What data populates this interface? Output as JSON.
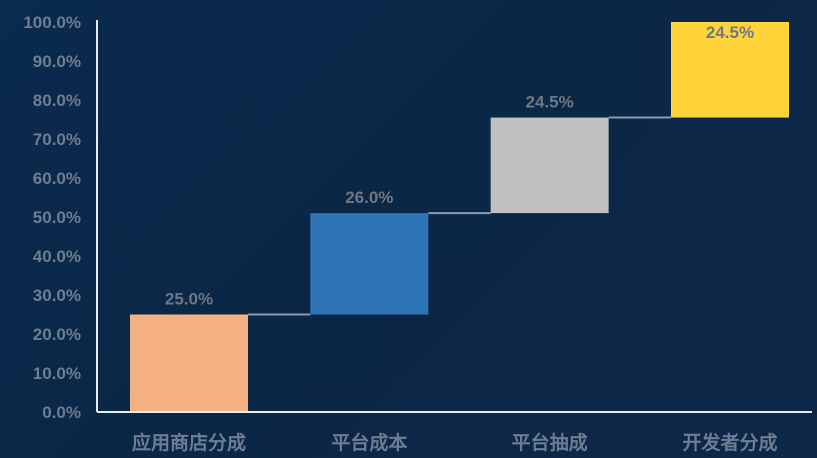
{
  "chart_data": {
    "type": "bar",
    "subtype": "waterfall",
    "categories": [
      "应用商店分成",
      "平台成本",
      "平台抽成",
      "开发者分成"
    ],
    "values": [
      25.0,
      26.0,
      24.5,
      24.5
    ],
    "data_labels": [
      "25.0%",
      "26.0%",
      "24.5%",
      "24.5%"
    ],
    "ylim": [
      0,
      100
    ],
    "yticks": [
      0,
      10,
      20,
      30,
      40,
      50,
      60,
      70,
      80,
      90,
      100
    ],
    "ytick_labels": [
      "0.0%",
      "10.0%",
      "20.0%",
      "30.0%",
      "40.0%",
      "50.0%",
      "60.0%",
      "70.0%",
      "80.0%",
      "90.0%",
      "100.0%"
    ],
    "colors": [
      "#f4b183",
      "#2e75b6",
      "#bfbfbf",
      "#ffd43b"
    ],
    "connector_color": "#8a9aac",
    "axis_color": "#e8edf3",
    "grid": false,
    "legend": "none"
  }
}
